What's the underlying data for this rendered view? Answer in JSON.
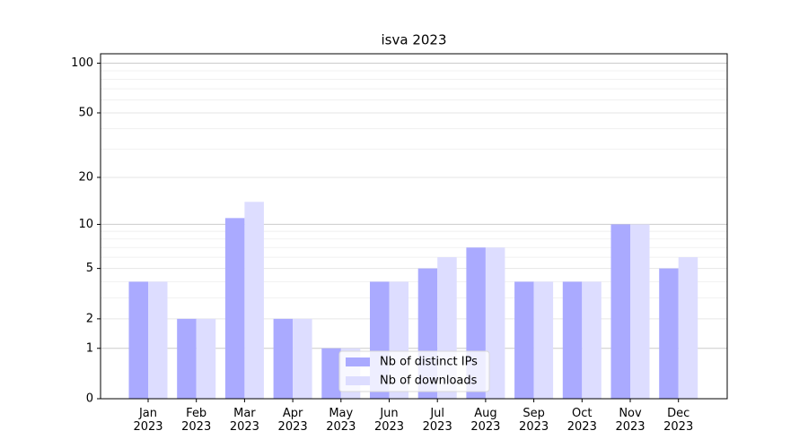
{
  "chart_data": {
    "type": "bar",
    "title": "isva 2023",
    "categories": [
      "Jan\n2023",
      "Feb\n2023",
      "Mar\n2023",
      "Apr\n2023",
      "May\n2023",
      "Jun\n2023",
      "Jul\n2023",
      "Aug\n2023",
      "Sep\n2023",
      "Oct\n2023",
      "Nov\n2023",
      "Dec\n2023"
    ],
    "series": [
      {
        "name": "Nb of distinct IPs",
        "color": "#aaaaff",
        "values": [
          4,
          2,
          11,
          2,
          1,
          4,
          5,
          7,
          4,
          4,
          10,
          5
        ]
      },
      {
        "name": "Nb of downloads",
        "color": "#ddddff",
        "values": [
          4,
          2,
          14,
          2,
          1,
          4,
          6,
          7,
          4,
          4,
          10,
          6
        ]
      }
    ],
    "yscale": "log1p",
    "ylim": [
      0,
      114
    ],
    "yticks": [
      0,
      1,
      2,
      5,
      10,
      20,
      50,
      100
    ],
    "minor_yticks": [
      3,
      4,
      6,
      7,
      8,
      9,
      30,
      40,
      60,
      70,
      80,
      90
    ],
    "grid": true,
    "legend": "lower center"
  }
}
